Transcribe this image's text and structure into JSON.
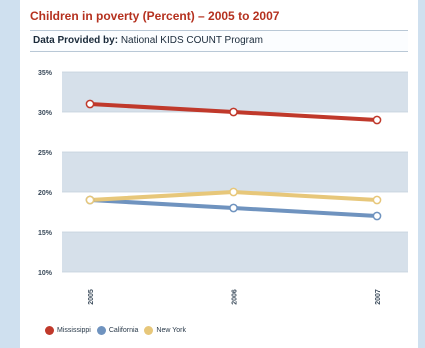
{
  "chart_data": {
    "type": "line",
    "title": "Children in poverty (Percent) – 2005 to 2007",
    "source_label": "Data Provided by:",
    "source_value": "National KIDS COUNT Program",
    "categories": [
      "2005",
      "2006",
      "2007"
    ],
    "y_ticks": [
      "35%",
      "30%",
      "25%",
      "20%",
      "15%",
      "10%"
    ],
    "ylim": [
      10,
      35
    ],
    "grid": true,
    "legend_position": "bottom-left",
    "series": [
      {
        "name": "Mississippi",
        "values": [
          31,
          30,
          29
        ],
        "color": "#c0392b"
      },
      {
        "name": "California",
        "values": [
          19,
          18,
          17
        ],
        "color": "#6f93bf"
      },
      {
        "name": "New York",
        "values": [
          19,
          20,
          19
        ],
        "color": "#e7c77a"
      }
    ]
  }
}
